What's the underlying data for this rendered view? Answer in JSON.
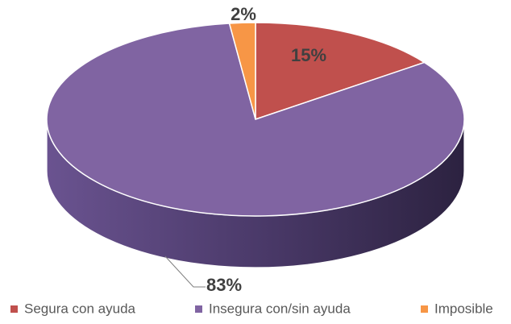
{
  "chart_data": {
    "type": "pie",
    "categories": [
      "Segura con ayuda",
      "Insegura con/sin ayuda",
      "Imposible"
    ],
    "values": [
      15,
      83,
      2
    ],
    "value_labels": [
      "15%",
      "83%",
      "2%"
    ],
    "colors": [
      "#c0504d",
      "#8064a2",
      "#f79646"
    ]
  }
}
